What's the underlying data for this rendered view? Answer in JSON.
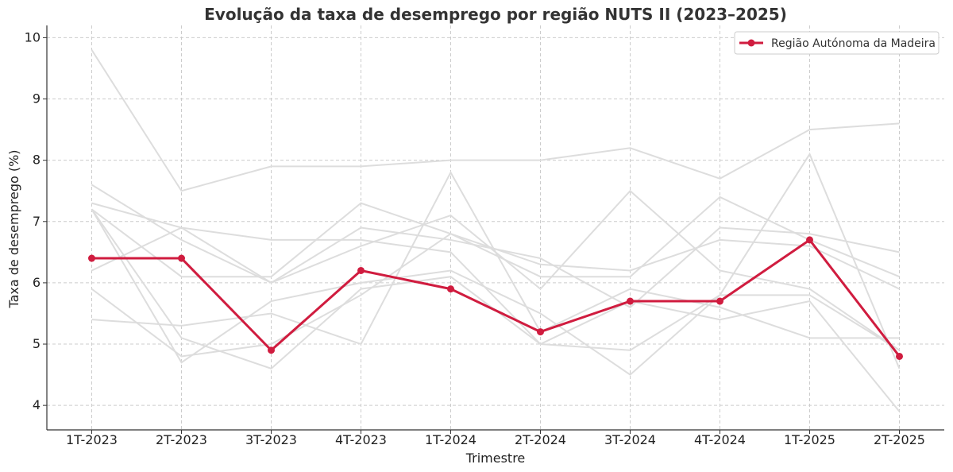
{
  "chart_data": {
    "type": "line",
    "title": "Evolução da taxa de desemprego por região NUTS II (2023–2025)",
    "xlabel": "Trimestre",
    "ylabel": "Taxa de desemprego (%)",
    "categories": [
      "1T-2023",
      "2T-2023",
      "3T-2023",
      "4T-2023",
      "1T-2024",
      "2T-2024",
      "3T-2024",
      "4T-2024",
      "1T-2025",
      "2T-2025"
    ],
    "ylim": [
      3.6,
      10.2
    ],
    "yticks": [
      4,
      5,
      6,
      7,
      8,
      9,
      10
    ],
    "grid": true,
    "legend_position": "top-right",
    "highlight": {
      "name": "Região Autónoma da Madeira",
      "color": "#d01c3f",
      "values": [
        6.4,
        6.4,
        4.9,
        6.2,
        5.9,
        5.2,
        5.7,
        5.7,
        6.7,
        4.8
      ]
    },
    "background_color": "#dddddd",
    "background_series": [
      {
        "values": [
          9.8,
          7.5,
          7.9,
          7.9,
          8.0,
          8.0,
          8.2,
          7.7,
          8.5,
          8.6
        ]
      },
      {
        "values": [
          7.6,
          6.7,
          6.0,
          6.9,
          6.7,
          6.4,
          5.6,
          6.9,
          6.8,
          6.5
        ]
      },
      {
        "values": [
          7.2,
          6.1,
          6.1,
          7.3,
          6.8,
          6.1,
          6.1,
          7.4,
          6.7,
          6.1
        ]
      },
      {
        "values": [
          7.3,
          6.9,
          6.0,
          6.6,
          7.1,
          5.9,
          7.5,
          6.2,
          5.9,
          4.9
        ]
      },
      {
        "values": [
          6.2,
          6.9,
          6.7,
          6.7,
          6.5,
          5.0,
          4.9,
          5.8,
          5.8,
          4.9
        ]
      },
      {
        "values": [
          7.2,
          4.7,
          5.7,
          6.0,
          6.2,
          5.5,
          4.5,
          5.8,
          8.1,
          4.6
        ]
      },
      {
        "values": [
          5.9,
          4.8,
          5.0,
          5.8,
          6.8,
          6.3,
          6.2,
          6.7,
          6.6,
          5.9
        ]
      },
      {
        "values": [
          5.4,
          5.3,
          5.5,
          5.0,
          7.8,
          5.2,
          5.9,
          5.6,
          5.1,
          5.1
        ]
      },
      {
        "values": [
          7.2,
          5.1,
          4.6,
          5.9,
          6.1,
          5.0,
          5.7,
          5.4,
          5.7,
          3.9
        ]
      }
    ]
  }
}
